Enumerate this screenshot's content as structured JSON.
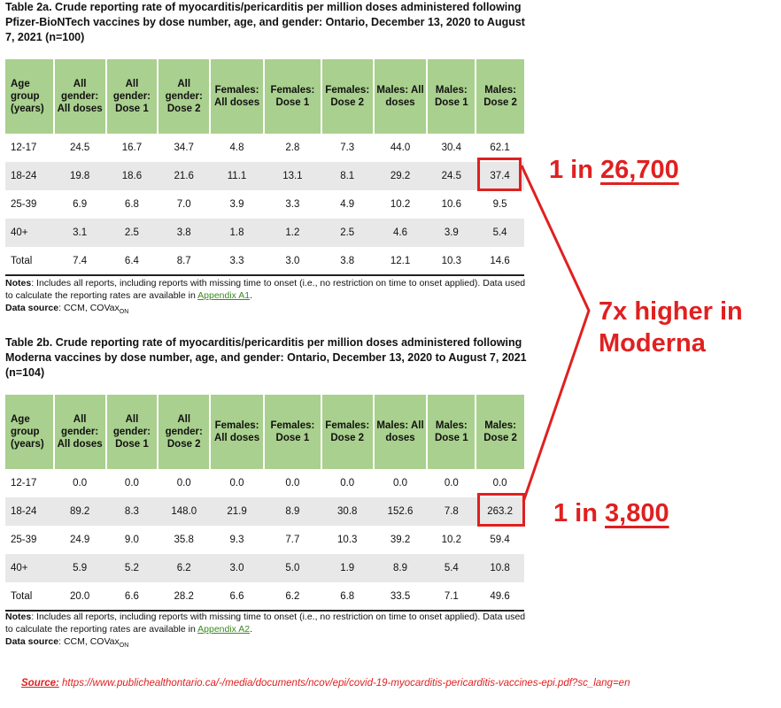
{
  "table_a": {
    "caption": "Table 2a. Crude reporting rate of myocarditis/pericarditis per million doses administered following Pfizer-BioNTech vaccines by dose number, age, and gender: Ontario, December 13, 2020 to August 7, 2021 (n=100)",
    "headers": [
      "Age group (years)",
      "All gender: All doses",
      "All gender: Dose 1",
      "All gender: Dose 2",
      "Females: All doses",
      "Females: Dose 1",
      "Females: Dose 2",
      "Males: All doses",
      "Males: Dose 1",
      "Males: Dose 2"
    ],
    "rows": [
      [
        "12-17",
        "24.5",
        "16.7",
        "34.7",
        "4.8",
        "2.8",
        "7.3",
        "44.0",
        "30.4",
        "62.1"
      ],
      [
        "18-24",
        "19.8",
        "18.6",
        "21.6",
        "11.1",
        "13.1",
        "8.1",
        "29.2",
        "24.5",
        "37.4"
      ],
      [
        "25-39",
        "6.9",
        "6.8",
        "7.0",
        "3.9",
        "3.3",
        "4.9",
        "10.2",
        "10.6",
        "9.5"
      ],
      [
        "40+",
        "3.1",
        "2.5",
        "3.8",
        "1.8",
        "1.2",
        "2.5",
        "4.6",
        "3.9",
        "5.4"
      ],
      [
        "Total",
        "7.4",
        "6.4",
        "8.7",
        "3.3",
        "3.0",
        "3.8",
        "12.1",
        "10.3",
        "14.6"
      ]
    ],
    "notes_label": "Notes",
    "notes_text": ": Includes all reports, including reports with missing time to onset (i.e., no restriction on time to onset applied). Data used to calculate the reporting rates are available in ",
    "notes_link": "Appendix A1",
    "notes_end": ".",
    "source_label": "Data source",
    "source_text": ": CCM, COVax",
    "source_sub": "ON"
  },
  "table_b": {
    "caption": "Table 2b. Crude reporting rate of myocarditis/pericarditis per million doses administered following Moderna vaccines by dose number, age, and gender: Ontario, December 13, 2020 to August 7, 2021 (n=104)",
    "headers": [
      "Age group (years)",
      "All gender: All doses",
      "All gender: Dose 1",
      "All gender: Dose 2",
      "Females: All doses",
      "Females: Dose 1",
      "Females: Dose 2",
      "Males: All doses",
      "Males: Dose 1",
      "Males: Dose 2"
    ],
    "rows": [
      [
        "12-17",
        "0.0",
        "0.0",
        "0.0",
        "0.0",
        "0.0",
        "0.0",
        "0.0",
        "0.0",
        "0.0"
      ],
      [
        "18-24",
        "89.2",
        "8.3",
        "148.0",
        "21.9",
        "8.9",
        "30.8",
        "152.6",
        "7.8",
        "263.2"
      ],
      [
        "25-39",
        "24.9",
        "9.0",
        "35.8",
        "9.3",
        "7.7",
        "10.3",
        "39.2",
        "10.2",
        "59.4"
      ],
      [
        "40+",
        "5.9",
        "5.2",
        "6.2",
        "3.0",
        "5.0",
        "1.9",
        "8.9",
        "5.4",
        "10.8"
      ],
      [
        "Total",
        "20.0",
        "6.6",
        "28.2",
        "6.6",
        "6.2",
        "6.8",
        "33.5",
        "7.1",
        "49.6"
      ]
    ],
    "notes_label": "Notes",
    "notes_text": ": Includes all reports, including reports with missing time to onset (i.e., no restriction on time to onset applied). Data used to calculate the reporting rates are available in ",
    "notes_link": "Appendix A2",
    "notes_end": ".",
    "source_label": "Data source",
    "source_text": ": CCM, COVax",
    "source_sub": "ON"
  },
  "annotations": {
    "pfizer_ratio_prefix": "1 in ",
    "pfizer_ratio_number": "26,700",
    "moderna_ratio_prefix": "1 in ",
    "moderna_ratio_number": "3,800",
    "callout_line1": "7x higher in",
    "callout_line2": "Moderna",
    "accent_color": "#e02020",
    "header_color": "#a9d08e"
  },
  "source": {
    "label": "Source:",
    "url": " https://www.publichealthontario.ca/-/media/documents/ncov/epi/covid-19-myocarditis-pericarditis-vaccines-epi.pdf?sc_lang=en"
  }
}
